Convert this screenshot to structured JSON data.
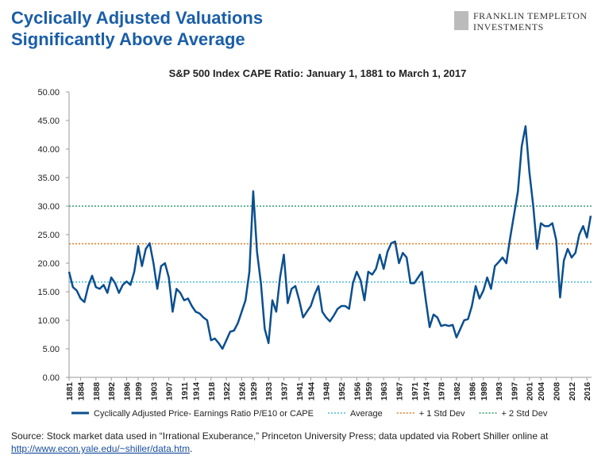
{
  "header": {
    "title_lines": [
      "Cyclically Adjusted Valuations",
      "Significantly Above Average"
    ],
    "logo_lines": [
      "FRANKLIN TEMPLETON",
      "INVESTMENTS"
    ]
  },
  "source": {
    "text": "Source: Stock market data used in “Irrational Exuberance,” Princeton University Press; data updated via Robert Shiller online at",
    "link": "http://www.econ.yale.edu/~shiller/data.htm",
    "end": "."
  },
  "chart_data": {
    "type": "line",
    "title": "S&P 500 Index CAPE Ratio: January 1, 1881 to March 1, 2017",
    "x": [
      1881,
      1882,
      1883,
      1884,
      1885,
      1886,
      1887,
      1888,
      1889,
      1890,
      1891,
      1892,
      1893,
      1894,
      1895,
      1896,
      1897,
      1898,
      1899,
      1900,
      1901,
      1902,
      1903,
      1904,
      1905,
      1906,
      1907,
      1908,
      1909,
      1910,
      1911,
      1912,
      1913,
      1914,
      1915,
      1916,
      1917,
      1918,
      1919,
      1920,
      1921,
      1922,
      1923,
      1924,
      1925,
      1926,
      1927,
      1928,
      1929,
      1930,
      1931,
      1932,
      1933,
      1934,
      1935,
      1936,
      1937,
      1938,
      1939,
      1940,
      1941,
      1942,
      1943,
      1944,
      1945,
      1946,
      1947,
      1948,
      1949,
      1950,
      1951,
      1952,
      1953,
      1954,
      1955,
      1956,
      1957,
      1958,
      1959,
      1960,
      1961,
      1962,
      1963,
      1964,
      1965,
      1966,
      1967,
      1968,
      1969,
      1970,
      1971,
      1972,
      1973,
      1974,
      1975,
      1976,
      1977,
      1978,
      1979,
      1980,
      1981,
      1982,
      1983,
      1984,
      1985,
      1986,
      1987,
      1988,
      1989,
      1990,
      1991,
      1992,
      1993,
      1994,
      1995,
      1996,
      1997,
      1998,
      1999,
      2000,
      2001,
      2002,
      2003,
      2004,
      2005,
      2006,
      2007,
      2008,
      2009,
      2010,
      2011,
      2012,
      2013,
      2014,
      2015,
      2016,
      2017
    ],
    "series": [
      {
        "name": "Cyclically Adjusted Price- Earnings Ratio P/E10 or CAPE",
        "color": "#0b4f8f",
        "values": [
          18.5,
          15.8,
          15.2,
          13.8,
          13.2,
          16.0,
          17.8,
          15.8,
          15.5,
          16.2,
          14.8,
          17.5,
          16.5,
          14.8,
          16.2,
          16.8,
          16.2,
          18.5,
          23.0,
          19.5,
          22.5,
          23.5,
          20.0,
          15.5,
          19.5,
          20.0,
          17.5,
          11.5,
          15.5,
          14.8,
          13.5,
          13.8,
          12.5,
          11.5,
          11.2,
          10.5,
          10.0,
          6.5,
          6.8,
          6.0,
          5.0,
          6.5,
          8.0,
          8.2,
          9.5,
          11.5,
          13.5,
          18.5,
          32.6,
          22.0,
          16.5,
          8.5,
          6.0,
          13.5,
          11.5,
          17.5,
          21.5,
          13.0,
          15.5,
          16.0,
          13.5,
          10.5,
          11.5,
          12.5,
          14.5,
          16.0,
          11.5,
          10.5,
          9.8,
          10.8,
          12.0,
          12.5,
          12.5,
          12.0,
          16.5,
          18.5,
          17.0,
          13.5,
          18.5,
          18.0,
          19.0,
          21.5,
          19.0,
          22.0,
          23.5,
          23.8,
          20.0,
          21.8,
          21.0,
          16.5,
          16.5,
          17.5,
          18.5,
          13.5,
          8.8,
          11.0,
          10.5,
          9.0,
          9.2,
          9.0,
          9.2,
          7.0,
          8.5,
          10.0,
          10.2,
          12.5,
          16.0,
          13.8,
          15.2,
          17.5,
          15.5,
          19.5,
          20.2,
          21.0,
          20.0,
          24.5,
          28.5,
          32.5,
          40.5,
          44.0,
          36.0,
          30.0,
          22.5,
          27.0,
          26.5,
          26.5,
          27.0,
          24.0,
          14.0,
          20.5,
          22.5,
          21.0,
          21.8,
          25.0,
          26.5,
          24.5,
          28.3
        ]
      }
    ],
    "reference_lines": [
      {
        "name": "Average",
        "value": 16.7,
        "color": "#4bb8d6"
      },
      {
        "name": "+ 1 Std Dev",
        "value": 23.4,
        "color": "#e07b1f"
      },
      {
        "name": "+ 2 Std Dev",
        "value": 30.0,
        "color": "#2e9e6e"
      }
    ],
    "xlim": [
      1881,
      2017.2
    ],
    "xticks": [
      1881,
      1884,
      1888,
      1892,
      1896,
      1899,
      1903,
      1907,
      1911,
      1914,
      1918,
      1922,
      1926,
      1929,
      1933,
      1937,
      1941,
      1944,
      1948,
      1952,
      1956,
      1959,
      1963,
      1967,
      1971,
      1974,
      1978,
      1982,
      1986,
      1989,
      1993,
      1997,
      2001,
      2004,
      2008,
      2012,
      2016
    ],
    "ylim": [
      0,
      50
    ],
    "yticks": [
      {
        "value": 0,
        "label": "0.00"
      },
      {
        "value": 5,
        "label": "5.00"
      },
      {
        "value": 10,
        "label": "10.00"
      },
      {
        "value": 15,
        "label": "15.00"
      },
      {
        "value": 20,
        "label": "20.00"
      },
      {
        "value": 25,
        "label": "25.00"
      },
      {
        "value": 30,
        "label": "30.00"
      },
      {
        "value": 35,
        "label": "35.00"
      },
      {
        "value": 40,
        "label": "40.00"
      },
      {
        "value": 45,
        "label": "45.00"
      },
      {
        "value": 50,
        "label": "50.00"
      }
    ]
  }
}
